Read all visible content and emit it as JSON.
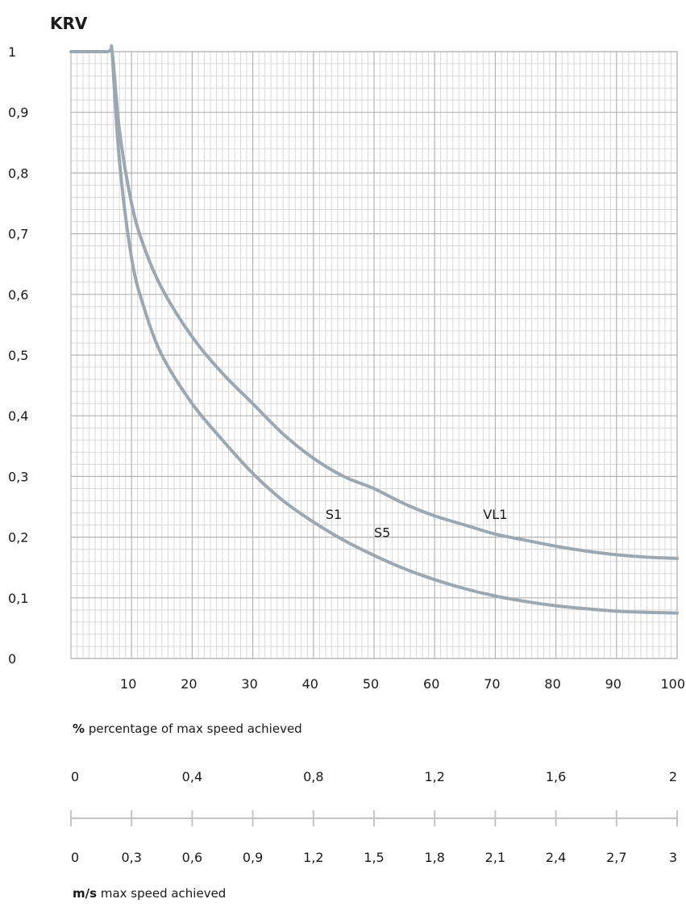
{
  "chart_data": {
    "type": "line",
    "title": "KRV",
    "x_axis": {
      "range": [
        0,
        100
      ],
      "ticks": [
        10,
        20,
        30,
        40,
        50,
        60,
        70,
        80,
        90,
        100
      ],
      "tick_labels": [
        "10",
        "20",
        "30",
        "40",
        "50",
        "60",
        "70",
        "80",
        "90",
        "100"
      ],
      "label_bold": "%",
      "label_rest": "percentage of max speed achieved"
    },
    "y_axis": {
      "range": [
        0,
        1
      ],
      "ticks": [
        0,
        0.1,
        0.2,
        0.3,
        0.4,
        0.5,
        0.6,
        0.7,
        0.8,
        0.9,
        1
      ],
      "tick_labels": [
        "0",
        "0,1",
        "0,2",
        "0,3",
        "0,4",
        "0,5",
        "0,6",
        "0,7",
        "0,8",
        "0,9",
        "1"
      ]
    },
    "grid": true,
    "series": [
      {
        "name": "S1 / VL1",
        "color": "#9ba8b2",
        "x": [
          0,
          6,
          6.8,
          8,
          10,
          12,
          15,
          20,
          25,
          30,
          35,
          40,
          45,
          50,
          55,
          60,
          65,
          70,
          75,
          80,
          85,
          90,
          95,
          100
        ],
        "y": [
          1,
          1,
          1,
          0.87,
          0.75,
          0.68,
          0.61,
          0.53,
          0.47,
          0.42,
          0.37,
          0.33,
          0.3,
          0.28,
          0.255,
          0.235,
          0.22,
          0.205,
          0.195,
          0.185,
          0.177,
          0.171,
          0.167,
          0.165
        ]
      },
      {
        "name": "S5",
        "color": "#9ba8b2",
        "x": [
          6.8,
          8,
          10,
          12,
          15,
          20,
          25,
          30,
          35,
          40,
          45,
          50,
          55,
          60,
          65,
          70,
          75,
          80,
          85,
          90,
          95,
          100
        ],
        "y": [
          1,
          0.82,
          0.66,
          0.58,
          0.5,
          0.42,
          0.36,
          0.305,
          0.26,
          0.225,
          0.195,
          0.17,
          0.148,
          0.13,
          0.115,
          0.103,
          0.094,
          0.087,
          0.082,
          0.078,
          0.076,
          0.075
        ]
      }
    ],
    "annotations": [
      {
        "text": "S1",
        "x": 42,
        "y": 0.23
      },
      {
        "text": "S5",
        "x": 50,
        "y": 0.2
      },
      {
        "text": "VL1",
        "x": 68,
        "y": 0.23
      }
    ],
    "speed_scale": {
      "top_labels": [
        "0",
        "0,4",
        "0,8",
        "1,2",
        "1,6",
        "2"
      ],
      "bottom_labels": [
        "0",
        "0,3",
        "0,6",
        "0,9",
        "1,2",
        "1,5",
        "1,8",
        "2,1",
        "2,4",
        "2,7",
        "3"
      ],
      "label_bold": "m/s",
      "label_rest": "max speed achieved"
    }
  },
  "colors": {
    "grid_major": "#b3b3b3",
    "grid_minor": "#d9d9d9",
    "curve": "#9ba8b2",
    "scale_line": "#c4c4c4"
  }
}
